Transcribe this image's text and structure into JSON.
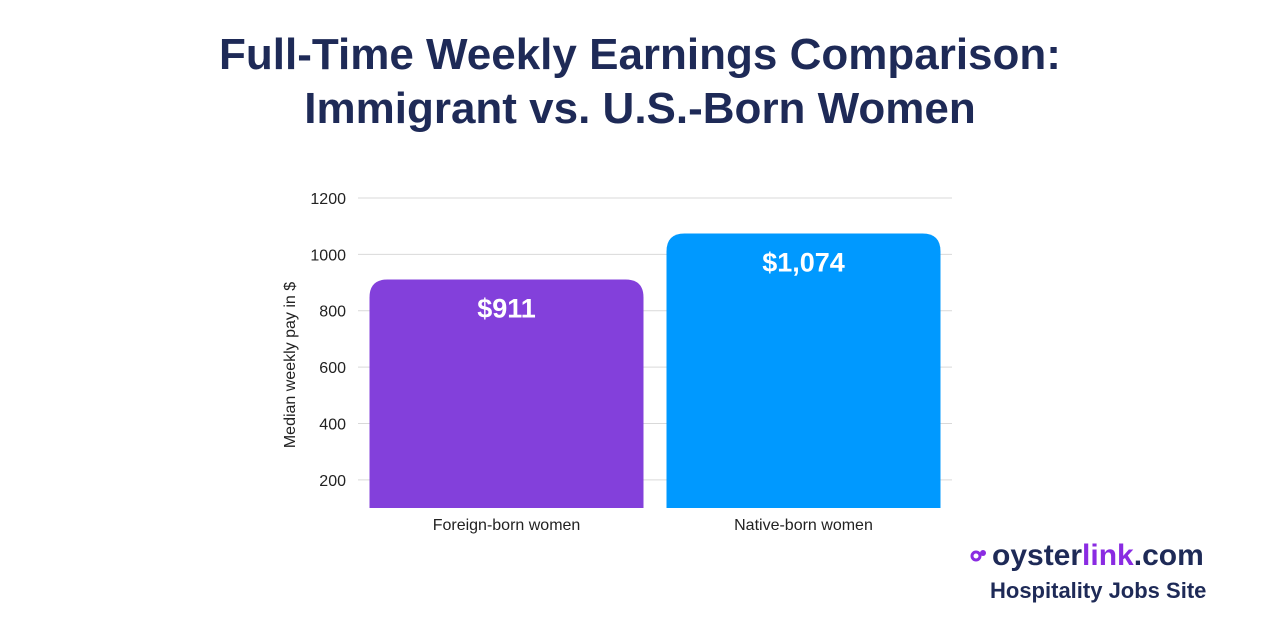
{
  "title_line1": "Full-Time Weekly Earnings Comparison:",
  "title_line2": "Immigrant vs. U.S.-Born Women",
  "chart_data": {
    "type": "bar",
    "categories": [
      "Foreign-born women",
      "Native-born women"
    ],
    "values": [
      911,
      1074
    ],
    "data_labels": [
      "$911",
      "$1,074"
    ],
    "colors": [
      "#8340db",
      "#0099ff"
    ],
    "ylabel": "Median weekly pay in $",
    "yticks": [
      200,
      400,
      600,
      800,
      1000,
      1200
    ],
    "ylim": [
      100,
      1200
    ],
    "grid": true
  },
  "brand": {
    "name_part1": "oyster",
    "name_part2": "link",
    "name_part3": ".com",
    "tagline": "Hospitality Jobs Site",
    "color_dark": "#1e2a57",
    "color_accent": "#8a2be2"
  }
}
